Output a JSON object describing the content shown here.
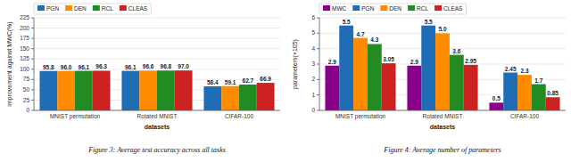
{
  "chart_data": [
    {
      "type": "bar",
      "title": "Figure 3: Average test accuracy across all tasks",
      "x_label": "datasets",
      "y_label": "improvement against MWC(%)",
      "categories": [
        "MNIST permutation",
        "Rotated MNIST",
        "CIFAR-100"
      ],
      "series": [
        {
          "name": "PGN",
          "color": "#1f6eb5",
          "values": [
            95.8,
            96.1,
            58.4
          ],
          "value_labels": [
            "95.8",
            "96.1",
            "58.4"
          ]
        },
        {
          "name": "DEN",
          "color": "#ff8c00",
          "values": [
            96.0,
            96.6,
            59.1
          ],
          "value_labels": [
            "96.0",
            "96.6",
            "59.1"
          ]
        },
        {
          "name": "RCL",
          "color": "#228b22",
          "values": [
            96.1,
            96.8,
            62.7
          ],
          "value_labels": [
            "96.1",
            "96.8",
            "62.7"
          ]
        },
        {
          "name": "CLEAS",
          "color": "#cc2222",
          "values": [
            96.3,
            97.0,
            66.9
          ],
          "value_labels": [
            "96.3",
            "97.0",
            "66.9"
          ]
        }
      ],
      "ylim": [
        0,
        225
      ],
      "yticks": [
        0,
        25,
        50,
        75,
        100,
        125,
        150,
        175,
        200,
        225
      ],
      "grid": true,
      "legend": "upper left",
      "data_labels": true
    },
    {
      "type": "bar",
      "title": "Figure 4: Average number of parameters",
      "x_label": "datasets",
      "y_label": "parameters(×105)",
      "categories": [
        "MNIST permutation",
        "Rotated MNIST",
        "CIFAR-100"
      ],
      "series": [
        {
          "name": "MWC",
          "color": "#8b008b",
          "values": [
            2.9,
            2.9,
            0.5
          ],
          "value_labels": [
            "2.9",
            "2.9",
            "0.5"
          ]
        },
        {
          "name": "PGN",
          "color": "#1f6eb5",
          "values": [
            5.5,
            5.5,
            2.45
          ],
          "value_labels": [
            "5.5",
            "5.5",
            "2.45"
          ]
        },
        {
          "name": "DEN",
          "color": "#ff8c00",
          "values": [
            4.7,
            5.0,
            2.3
          ],
          "value_labels": [
            "4.7",
            "5.0",
            "2.3"
          ]
        },
        {
          "name": "RCL",
          "color": "#228b22",
          "values": [
            4.3,
            3.6,
            1.7
          ],
          "value_labels": [
            "4.3",
            "3.6",
            "1.7"
          ]
        },
        {
          "name": "CLEAS",
          "color": "#cc2222",
          "values": [
            3.05,
            2.95,
            0.85
          ],
          "value_labels": [
            "3.05",
            "2.95",
            "0.85"
          ]
        }
      ],
      "ylim": [
        0,
        6
      ],
      "yticks": [
        0,
        1,
        2,
        3,
        4,
        5,
        6
      ],
      "grid": true,
      "legend": "upper left",
      "data_labels": true
    }
  ]
}
